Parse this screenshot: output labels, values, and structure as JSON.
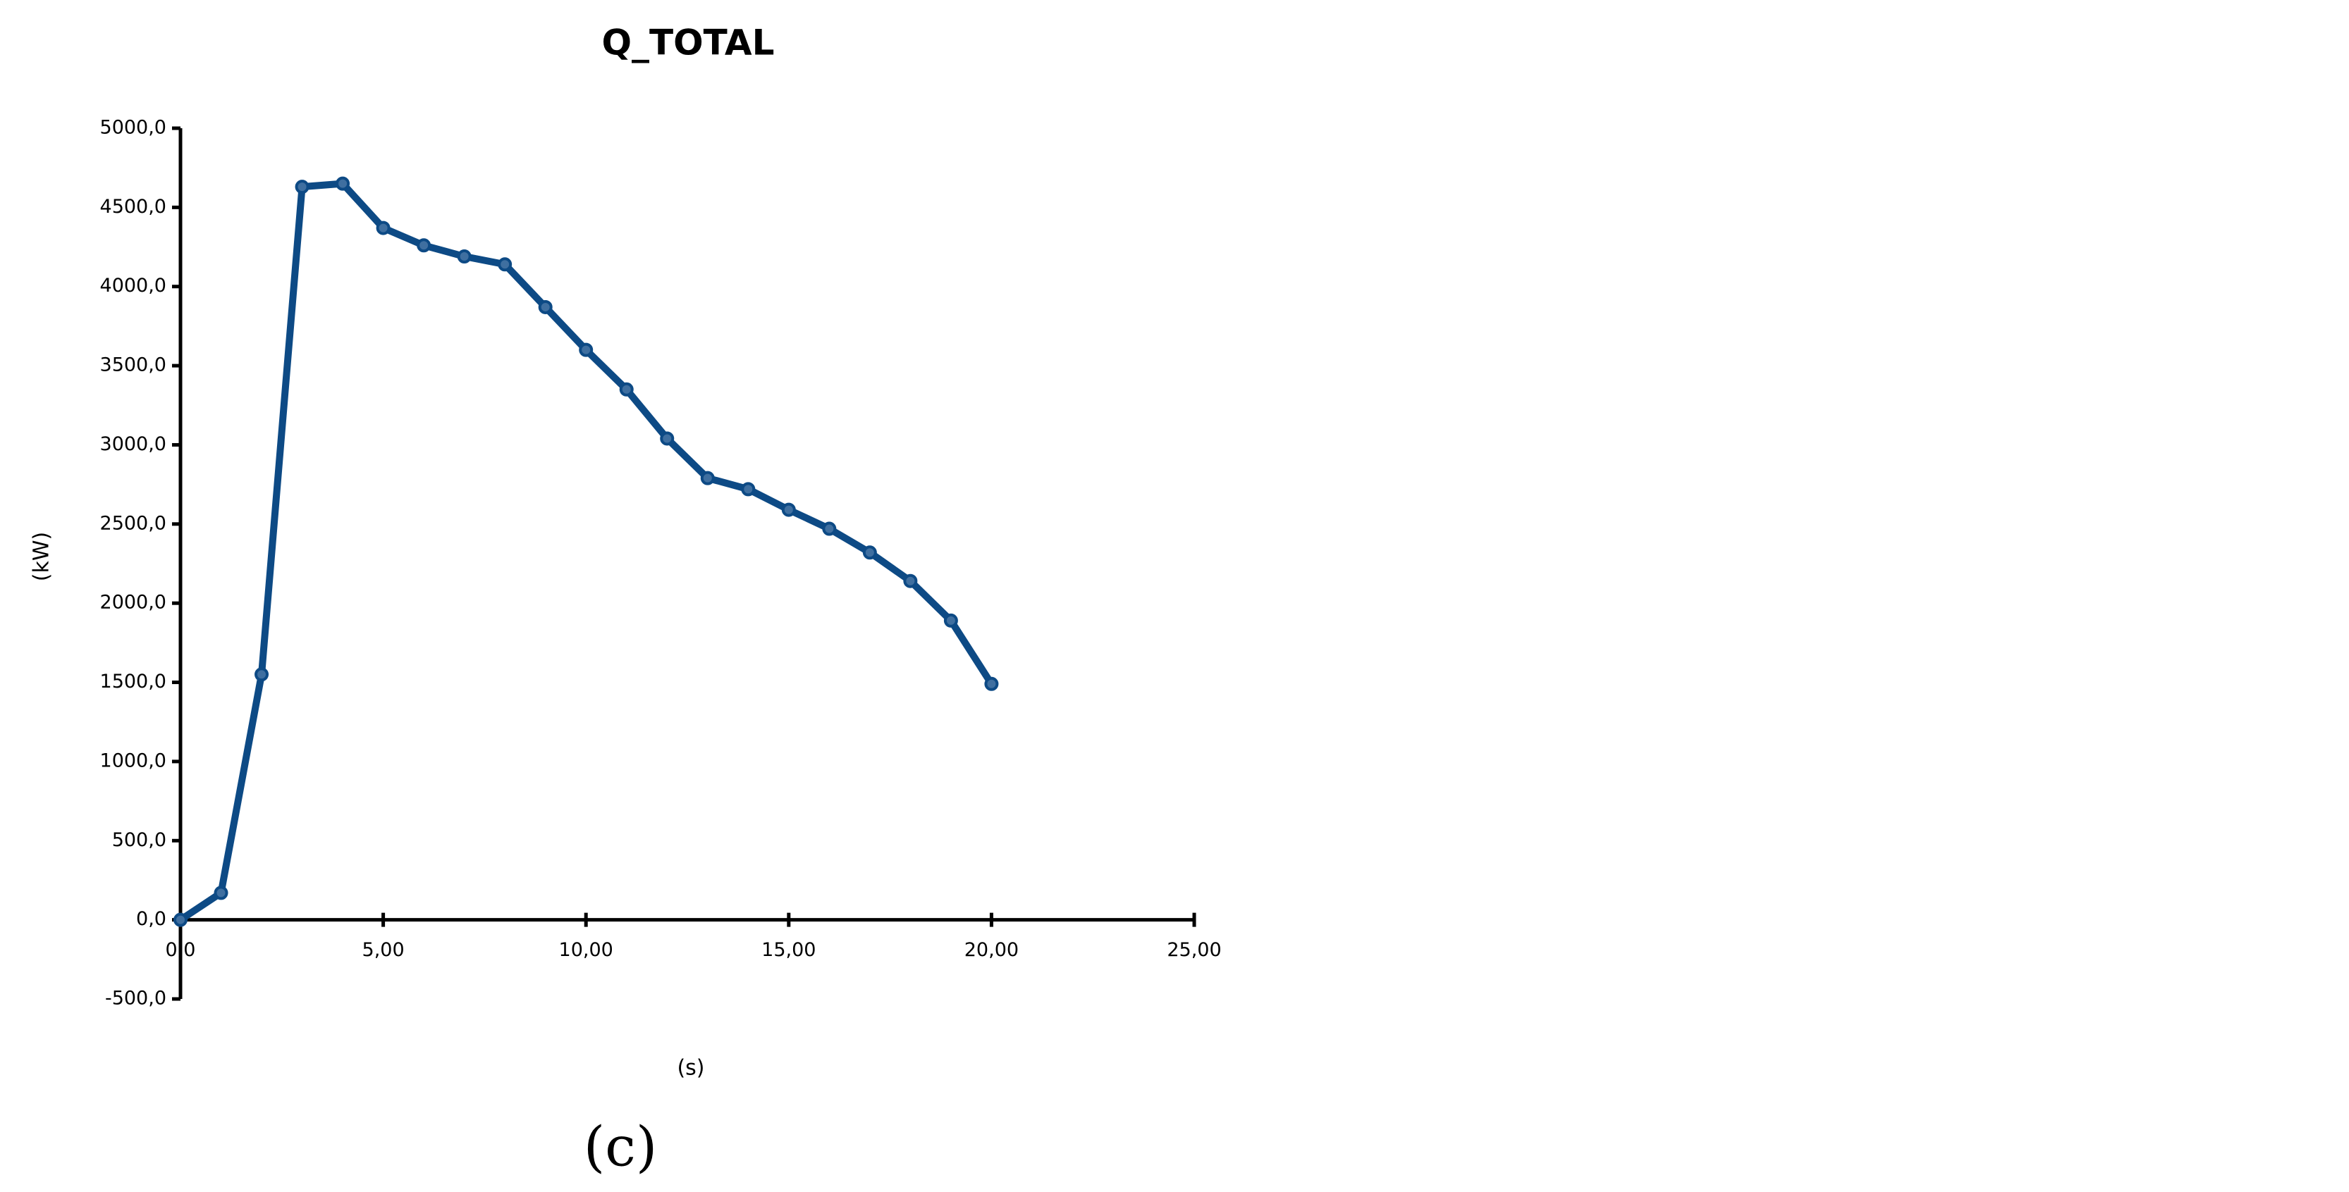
{
  "chart_data": {
    "type": "line",
    "title": "Q_TOTAL",
    "x_label": "(s)",
    "y_label": "(kW)",
    "caption": "(c)",
    "x": [
      0,
      1,
      2,
      3,
      4,
      5,
      6,
      7,
      8,
      9,
      10,
      11,
      12,
      13,
      14,
      15,
      16,
      17,
      18,
      19,
      20
    ],
    "series": [
      {
        "name": "Q_TOTAL",
        "color": "#0d4a85",
        "values": [
          0,
          170,
          1550,
          4630,
          4650,
          4370,
          4260,
          4190,
          4140,
          3870,
          3600,
          3350,
          3040,
          2790,
          2720,
          2590,
          2470,
          2320,
          2140,
          1890,
          1490
        ]
      }
    ],
    "xlim": [
      0,
      25
    ],
    "xticks": [
      {
        "value": 0,
        "label": "0,0"
      },
      {
        "value": 5,
        "label": "5,00"
      },
      {
        "value": 10,
        "label": "10,00"
      },
      {
        "value": 15,
        "label": "15,00"
      },
      {
        "value": 20,
        "label": "20,00"
      },
      {
        "value": 25,
        "label": "25,00"
      }
    ],
    "ylim": [
      -500,
      5000
    ],
    "yticks": [
      {
        "value": -500,
        "label": "-500,0"
      },
      {
        "value": 0,
        "label": "0,0"
      },
      {
        "value": 500,
        "label": "500,0"
      },
      {
        "value": 1000,
        "label": "1000,0"
      },
      {
        "value": 1500,
        "label": "1500,0"
      },
      {
        "value": 2000,
        "label": "2000,0"
      },
      {
        "value": 2500,
        "label": "2500,0"
      },
      {
        "value": 3000,
        "label": "3000,0"
      },
      {
        "value": 3500,
        "label": "3500,0"
      },
      {
        "value": 4000,
        "label": "4000,0"
      },
      {
        "value": 4500,
        "label": "4500,0"
      },
      {
        "value": 5000,
        "label": "5000,0"
      }
    ],
    "grid": false
  }
}
